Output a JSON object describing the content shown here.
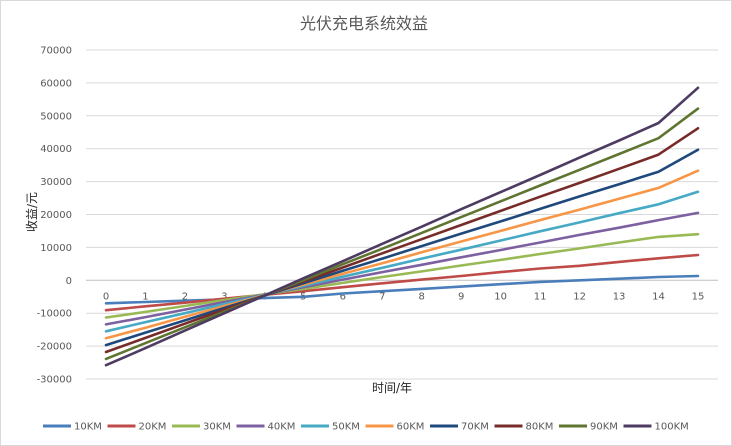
{
  "chart_data": {
    "type": "line",
    "title": "光伏充电系统效益",
    "xlabel": "时间/年",
    "ylabel": "收益/元",
    "x": [
      0,
      1,
      2,
      3,
      4,
      5,
      6,
      7,
      8,
      9,
      10,
      11,
      12,
      13,
      14,
      15
    ],
    "ylim": [
      -30000,
      70000
    ],
    "yticks": [
      -30000,
      -20000,
      -10000,
      0,
      10000,
      20000,
      30000,
      40000,
      50000,
      60000,
      70000
    ],
    "grid": "horizontal",
    "legend_position": "bottom",
    "series": [
      {
        "name": "10KM",
        "color": "#4a7ebb",
        "values": [
          -7000,
          -6600,
          -6200,
          -5800,
          -5400,
          -5000,
          -4000,
          -3300,
          -2600,
          -1900,
          -1200,
          -500,
          0,
          500,
          1000,
          1300
        ]
      },
      {
        "name": "20KM",
        "color": "#be4b48",
        "values": [
          -9100,
          -7900,
          -6800,
          -5600,
          -4400,
          -3300,
          -2100,
          -900,
          200,
          1300,
          2500,
          3600,
          4400,
          5600,
          6700,
          7700
        ]
      },
      {
        "name": "30KM",
        "color": "#98b954",
        "values": [
          -11300,
          -9600,
          -7800,
          -6000,
          -4300,
          -2600,
          -800,
          1000,
          2700,
          4500,
          6200,
          8000,
          9700,
          11500,
          13200,
          14000
        ]
      },
      {
        "name": "40KM",
        "color": "#7d60a0",
        "values": [
          -13400,
          -11200,
          -8900,
          -6600,
          -4400,
          -2100,
          200,
          2500,
          4700,
          7000,
          9200,
          11500,
          13800,
          16000,
          18300,
          20500
        ]
      },
      {
        "name": "50KM",
        "color": "#46aac5",
        "values": [
          -15500,
          -12700,
          -10000,
          -7200,
          -4500,
          -1700,
          1100,
          3800,
          6600,
          9300,
          12100,
          14900,
          17600,
          20400,
          23100,
          26900
        ]
      },
      {
        "name": "60KM",
        "color": "#f79646",
        "values": [
          -17600,
          -14400,
          -11100,
          -7800,
          -4600,
          -1300,
          2000,
          5200,
          8500,
          11800,
          15000,
          18300,
          21500,
          24800,
          28100,
          33300
        ]
      },
      {
        "name": "70KM",
        "color": "#1f497d",
        "values": [
          -19700,
          -15900,
          -12200,
          -8400,
          -4700,
          -900,
          2900,
          6600,
          10400,
          14200,
          17900,
          21700,
          25500,
          29200,
          33000,
          39700
        ]
      },
      {
        "name": "80KM",
        "color": "#772c2a",
        "values": [
          -21800,
          -17500,
          -13200,
          -8900,
          -4700,
          -400,
          3900,
          8200,
          12500,
          16800,
          21100,
          25400,
          29600,
          33900,
          38200,
          46200
        ]
      },
      {
        "name": "90KM",
        "color": "#5f7530",
        "values": [
          -23900,
          -19100,
          -14300,
          -9500,
          -4700,
          0,
          4900,
          9600,
          14400,
          19200,
          24000,
          28800,
          33600,
          38400,
          43200,
          52200
        ]
      },
      {
        "name": "100KM",
        "color": "#4d3b62",
        "values": [
          -25800,
          -20600,
          -15300,
          -10000,
          -4700,
          600,
          5800,
          11100,
          16300,
          21600,
          26800,
          32000,
          37300,
          42500,
          47800,
          58500
        ]
      }
    ]
  }
}
